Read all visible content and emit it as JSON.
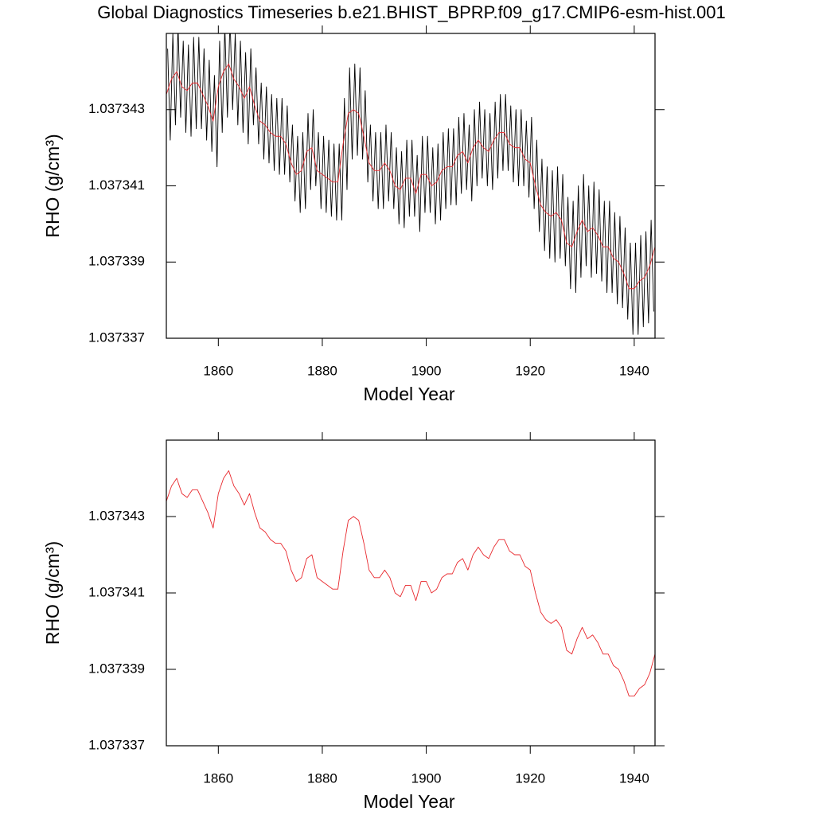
{
  "chart_data": [
    {
      "type": "line",
      "title": "Global Diagnostics Timeseries b.e21.BHIST_BPRP.f09_g17.CMIP6-esm-hist.001",
      "xlabel": "Model Year",
      "ylabel": "RHO (g/cm³)",
      "xlim": [
        1850,
        1944
      ],
      "xticks": [
        1860,
        1880,
        1900,
        1920,
        1940
      ],
      "ylim": [
        1.037337,
        1.037345
      ],
      "yticks": [
        1.037337,
        1.037339,
        1.037341,
        1.037343
      ],
      "series": [
        {
          "color": "#000000",
          "x": [
            1850.25,
            1850.75,
            1851.25,
            1851.75,
            1852.25,
            1852.75,
            1853.25,
            1853.75,
            1854.25,
            1854.75,
            1855.25,
            1855.75,
            1856.25,
            1856.75,
            1857.25,
            1857.75,
            1858.25,
            1858.75,
            1859.25,
            1859.75,
            1860.25,
            1860.75,
            1861.25,
            1861.75,
            1862.25,
            1862.75,
            1863.25,
            1863.75,
            1864.25,
            1864.75,
            1865.25,
            1865.75,
            1866.25,
            1866.75,
            1867.25,
            1867.75,
            1868.25,
            1868.75,
            1869.25,
            1869.75,
            1870.25,
            1870.75,
            1871.25,
            1871.75,
            1872.25,
            1872.75,
            1873.25,
            1873.75,
            1874.25,
            1874.75,
            1875.25,
            1875.75,
            1876.25,
            1876.75,
            1877.25,
            1877.75,
            1878.25,
            1878.75,
            1879.25,
            1879.75,
            1880.25,
            1880.75,
            1881.25,
            1881.75,
            1882.25,
            1882.75,
            1883.25,
            1883.75,
            1884.25,
            1884.75,
            1885.25,
            1885.75,
            1886.25,
            1886.75,
            1887.25,
            1887.75,
            1888.25,
            1888.75,
            1889.25,
            1889.75,
            1890.25,
            1890.75,
            1891.25,
            1891.75,
            1892.25,
            1892.75,
            1893.25,
            1893.75,
            1894.25,
            1894.75,
            1895.25,
            1895.75,
            1896.25,
            1896.75,
            1897.25,
            1897.75,
            1898.25,
            1898.75,
            1899.25,
            1899.75,
            1900.25,
            1900.75,
            1901.25,
            1901.75,
            1902.25,
            1902.75,
            1903.25,
            1903.75,
            1904.25,
            1904.75,
            1905.25,
            1905.75,
            1906.25,
            1906.75,
            1907.25,
            1907.75,
            1908.25,
            1908.75,
            1909.25,
            1909.75,
            1910.25,
            1910.75,
            1911.25,
            1911.75,
            1912.25,
            1912.75,
            1913.25,
            1913.75,
            1914.25,
            1914.75,
            1915.25,
            1915.75,
            1916.25,
            1916.75,
            1917.25,
            1917.75,
            1918.25,
            1918.75,
            1919.25,
            1919.75,
            1920.25,
            1920.75,
            1921.25,
            1921.75,
            1922.25,
            1922.75,
            1923.25,
            1923.75,
            1924.25,
            1924.75,
            1925.25,
            1925.75,
            1926.25,
            1926.75,
            1927.25,
            1927.75,
            1928.25,
            1928.75,
            1929.25,
            1929.75,
            1930.25,
            1930.75,
            1931.25,
            1931.75,
            1932.25,
            1932.75,
            1933.25,
            1933.75,
            1934.25,
            1934.75,
            1935.25,
            1935.75,
            1936.25,
            1936.75,
            1937.25,
            1937.75,
            1938.25,
            1938.75,
            1939.25,
            1939.75,
            1940.25,
            1940.75,
            1941.25,
            1941.75,
            1942.25,
            1942.75,
            1943.25,
            1943.75
          ],
          "values": [
            1.0373446,
            1.0373422,
            1.037345,
            1.0373426,
            1.0373452,
            1.0373428,
            1.0373448,
            1.0373424,
            1.0373447,
            1.0373423,
            1.0373449,
            1.0373425,
            1.0373449,
            1.0373425,
            1.0373446,
            1.0373422,
            1.0373443,
            1.0373419,
            1.0373439,
            1.0373415,
            1.0373448,
            1.0373424,
            1.0373452,
            1.0373428,
            1.0373454,
            1.037343,
            1.037345,
            1.0373426,
            1.0373448,
            1.0373424,
            1.0373445,
            1.0373421,
            1.0373446,
            1.0373426,
            1.0373441,
            1.0373421,
            1.0373437,
            1.0373417,
            1.0373436,
            1.0373416,
            1.0373434,
            1.0373414,
            1.0373433,
            1.0373413,
            1.0373433,
            1.0373413,
            1.0373431,
            1.0373411,
            1.0373426,
            1.0373406,
            1.0373423,
            1.0373403,
            1.0373424,
            1.0373404,
            1.0373429,
            1.0373409,
            1.037343,
            1.037341,
            1.0373424,
            1.0373404,
            1.0373423,
            1.0373403,
            1.0373422,
            1.0373402,
            1.0373421,
            1.0373401,
            1.0373421,
            1.0373401,
            1.0373433,
            1.0373409,
            1.0373441,
            1.0373417,
            1.0373442,
            1.0373418,
            1.0373441,
            1.0373417,
            1.0373435,
            1.0373411,
            1.0373426,
            1.0373406,
            1.0373424,
            1.0373404,
            1.0373424,
            1.0373404,
            1.0373426,
            1.0373406,
            1.0373424,
            1.0373404,
            1.037342,
            1.03734,
            1.0373419,
            1.0373399,
            1.0373422,
            1.0373402,
            1.0373422,
            1.0373402,
            1.0373418,
            1.0373398,
            1.0373423,
            1.0373403,
            1.0373423,
            1.0373403,
            1.037342,
            1.03734,
            1.0373421,
            1.0373401,
            1.0373424,
            1.0373404,
            1.0373425,
            1.0373405,
            1.0373425,
            1.0373405,
            1.0373428,
            1.0373408,
            1.0373429,
            1.0373409,
            1.0373426,
            1.0373406,
            1.037343,
            1.037341,
            1.0373432,
            1.0373412,
            1.037343,
            1.037341,
            1.0373429,
            1.0373409,
            1.0373432,
            1.0373412,
            1.0373434,
            1.0373414,
            1.0373434,
            1.0373414,
            1.0373431,
            1.0373411,
            1.037343,
            1.037341,
            1.037343,
            1.037341,
            1.0373427,
            1.0373407,
            1.0373428,
            1.0373404,
            1.0373422,
            1.0373398,
            1.0373417,
            1.0373393,
            1.0373415,
            1.0373391,
            1.0373414,
            1.037339,
            1.0373415,
            1.0373391,
            1.0373413,
            1.0373389,
            1.0373407,
            1.0373383,
            1.0373406,
            1.0373382,
            1.037341,
            1.0373386,
            1.0373413,
            1.0373389,
            1.037341,
            1.0373386,
            1.0373411,
            1.0373387,
            1.0373409,
            1.0373385,
            1.0373406,
            1.0373382,
            1.0373406,
            1.0373382,
            1.0373403,
            1.0373379,
            1.0373402,
            1.0373378,
            1.0373399,
            1.0373375,
            1.0373395,
            1.0373371,
            1.0373395,
            1.0373371,
            1.0373397,
            1.0373373,
            1.0373398,
            1.0373374,
            1.0373401,
            1.0373377
          ]
        },
        {
          "color": "#e8282d",
          "x": [
            1850,
            1851,
            1852,
            1853,
            1854,
            1855,
            1856,
            1857,
            1858,
            1859,
            1860,
            1861,
            1862,
            1863,
            1864,
            1865,
            1866,
            1867,
            1868,
            1869,
            1870,
            1871,
            1872,
            1873,
            1874,
            1875,
            1876,
            1877,
            1878,
            1879,
            1880,
            1881,
            1882,
            1883,
            1884,
            1885,
            1886,
            1887,
            1888,
            1889,
            1890,
            1891,
            1892,
            1893,
            1894,
            1895,
            1896,
            1897,
            1898,
            1899,
            1900,
            1901,
            1902,
            1903,
            1904,
            1905,
            1906,
            1907,
            1908,
            1909,
            1910,
            1911,
            1912,
            1913,
            1914,
            1915,
            1916,
            1917,
            1918,
            1919,
            1920,
            1921,
            1922,
            1923,
            1924,
            1925,
            1926,
            1927,
            1928,
            1929,
            1930,
            1931,
            1932,
            1933,
            1934,
            1935,
            1936,
            1937,
            1938,
            1939,
            1940,
            1941,
            1942,
            1943,
            1944
          ],
          "values": [
            1.0373434,
            1.0373438,
            1.037344,
            1.0373436,
            1.0373435,
            1.0373437,
            1.0373437,
            1.0373434,
            1.0373431,
            1.0373427,
            1.0373436,
            1.037344,
            1.0373442,
            1.0373438,
            1.0373436,
            1.0373433,
            1.0373436,
            1.0373431,
            1.0373427,
            1.0373426,
            1.0373424,
            1.0373423,
            1.0373423,
            1.0373421,
            1.0373416,
            1.0373413,
            1.0373414,
            1.0373419,
            1.037342,
            1.0373414,
            1.0373413,
            1.0373412,
            1.0373411,
            1.0373411,
            1.0373421,
            1.0373429,
            1.037343,
            1.0373429,
            1.0373423,
            1.0373416,
            1.0373414,
            1.0373414,
            1.0373416,
            1.0373414,
            1.037341,
            1.0373409,
            1.0373412,
            1.0373412,
            1.0373408,
            1.0373413,
            1.0373413,
            1.037341,
            1.0373411,
            1.0373414,
            1.0373415,
            1.0373415,
            1.0373418,
            1.0373419,
            1.0373416,
            1.037342,
            1.0373422,
            1.037342,
            1.0373419,
            1.0373422,
            1.0373424,
            1.0373424,
            1.0373421,
            1.037342,
            1.037342,
            1.0373417,
            1.0373416,
            1.037341,
            1.0373405,
            1.0373403,
            1.0373402,
            1.0373403,
            1.0373401,
            1.0373395,
            1.0373394,
            1.0373398,
            1.0373401,
            1.0373398,
            1.0373399,
            1.0373397,
            1.0373394,
            1.0373394,
            1.0373391,
            1.037339,
            1.0373387,
            1.0373383,
            1.0373383,
            1.0373385,
            1.0373386,
            1.0373389,
            1.0373394
          ]
        }
      ]
    },
    {
      "type": "line",
      "xlabel": "Model Year",
      "ylabel": "RHO (g/cm³)",
      "xlim": [
        1850,
        1944
      ],
      "xticks": [
        1860,
        1880,
        1900,
        1920,
        1940
      ],
      "ylim": [
        1.037337,
        1.037345
      ],
      "yticks": [
        1.037337,
        1.037339,
        1.037341,
        1.037343
      ],
      "series": [
        {
          "color": "#e8282d",
          "x": [
            1850,
            1851,
            1852,
            1853,
            1854,
            1855,
            1856,
            1857,
            1858,
            1859,
            1860,
            1861,
            1862,
            1863,
            1864,
            1865,
            1866,
            1867,
            1868,
            1869,
            1870,
            1871,
            1872,
            1873,
            1874,
            1875,
            1876,
            1877,
            1878,
            1879,
            1880,
            1881,
            1882,
            1883,
            1884,
            1885,
            1886,
            1887,
            1888,
            1889,
            1890,
            1891,
            1892,
            1893,
            1894,
            1895,
            1896,
            1897,
            1898,
            1899,
            1900,
            1901,
            1902,
            1903,
            1904,
            1905,
            1906,
            1907,
            1908,
            1909,
            1910,
            1911,
            1912,
            1913,
            1914,
            1915,
            1916,
            1917,
            1918,
            1919,
            1920,
            1921,
            1922,
            1923,
            1924,
            1925,
            1926,
            1927,
            1928,
            1929,
            1930,
            1931,
            1932,
            1933,
            1934,
            1935,
            1936,
            1937,
            1938,
            1939,
            1940,
            1941,
            1942,
            1943,
            1944
          ],
          "values": [
            1.0373434,
            1.0373438,
            1.037344,
            1.0373436,
            1.0373435,
            1.0373437,
            1.0373437,
            1.0373434,
            1.0373431,
            1.0373427,
            1.0373436,
            1.037344,
            1.0373442,
            1.0373438,
            1.0373436,
            1.0373433,
            1.0373436,
            1.0373431,
            1.0373427,
            1.0373426,
            1.0373424,
            1.0373423,
            1.0373423,
            1.0373421,
            1.0373416,
            1.0373413,
            1.0373414,
            1.0373419,
            1.037342,
            1.0373414,
            1.0373413,
            1.0373412,
            1.0373411,
            1.0373411,
            1.0373421,
            1.0373429,
            1.037343,
            1.0373429,
            1.0373423,
            1.0373416,
            1.0373414,
            1.0373414,
            1.0373416,
            1.0373414,
            1.037341,
            1.0373409,
            1.0373412,
            1.0373412,
            1.0373408,
            1.0373413,
            1.0373413,
            1.037341,
            1.0373411,
            1.0373414,
            1.0373415,
            1.0373415,
            1.0373418,
            1.0373419,
            1.0373416,
            1.037342,
            1.0373422,
            1.037342,
            1.0373419,
            1.0373422,
            1.0373424,
            1.0373424,
            1.0373421,
            1.037342,
            1.037342,
            1.0373417,
            1.0373416,
            1.037341,
            1.0373405,
            1.0373403,
            1.0373402,
            1.0373403,
            1.0373401,
            1.0373395,
            1.0373394,
            1.0373398,
            1.0373401,
            1.0373398,
            1.0373399,
            1.0373397,
            1.0373394,
            1.0373394,
            1.0373391,
            1.037339,
            1.0373387,
            1.0373383,
            1.0373383,
            1.0373385,
            1.0373386,
            1.0373389,
            1.0373394
          ]
        }
      ]
    }
  ]
}
